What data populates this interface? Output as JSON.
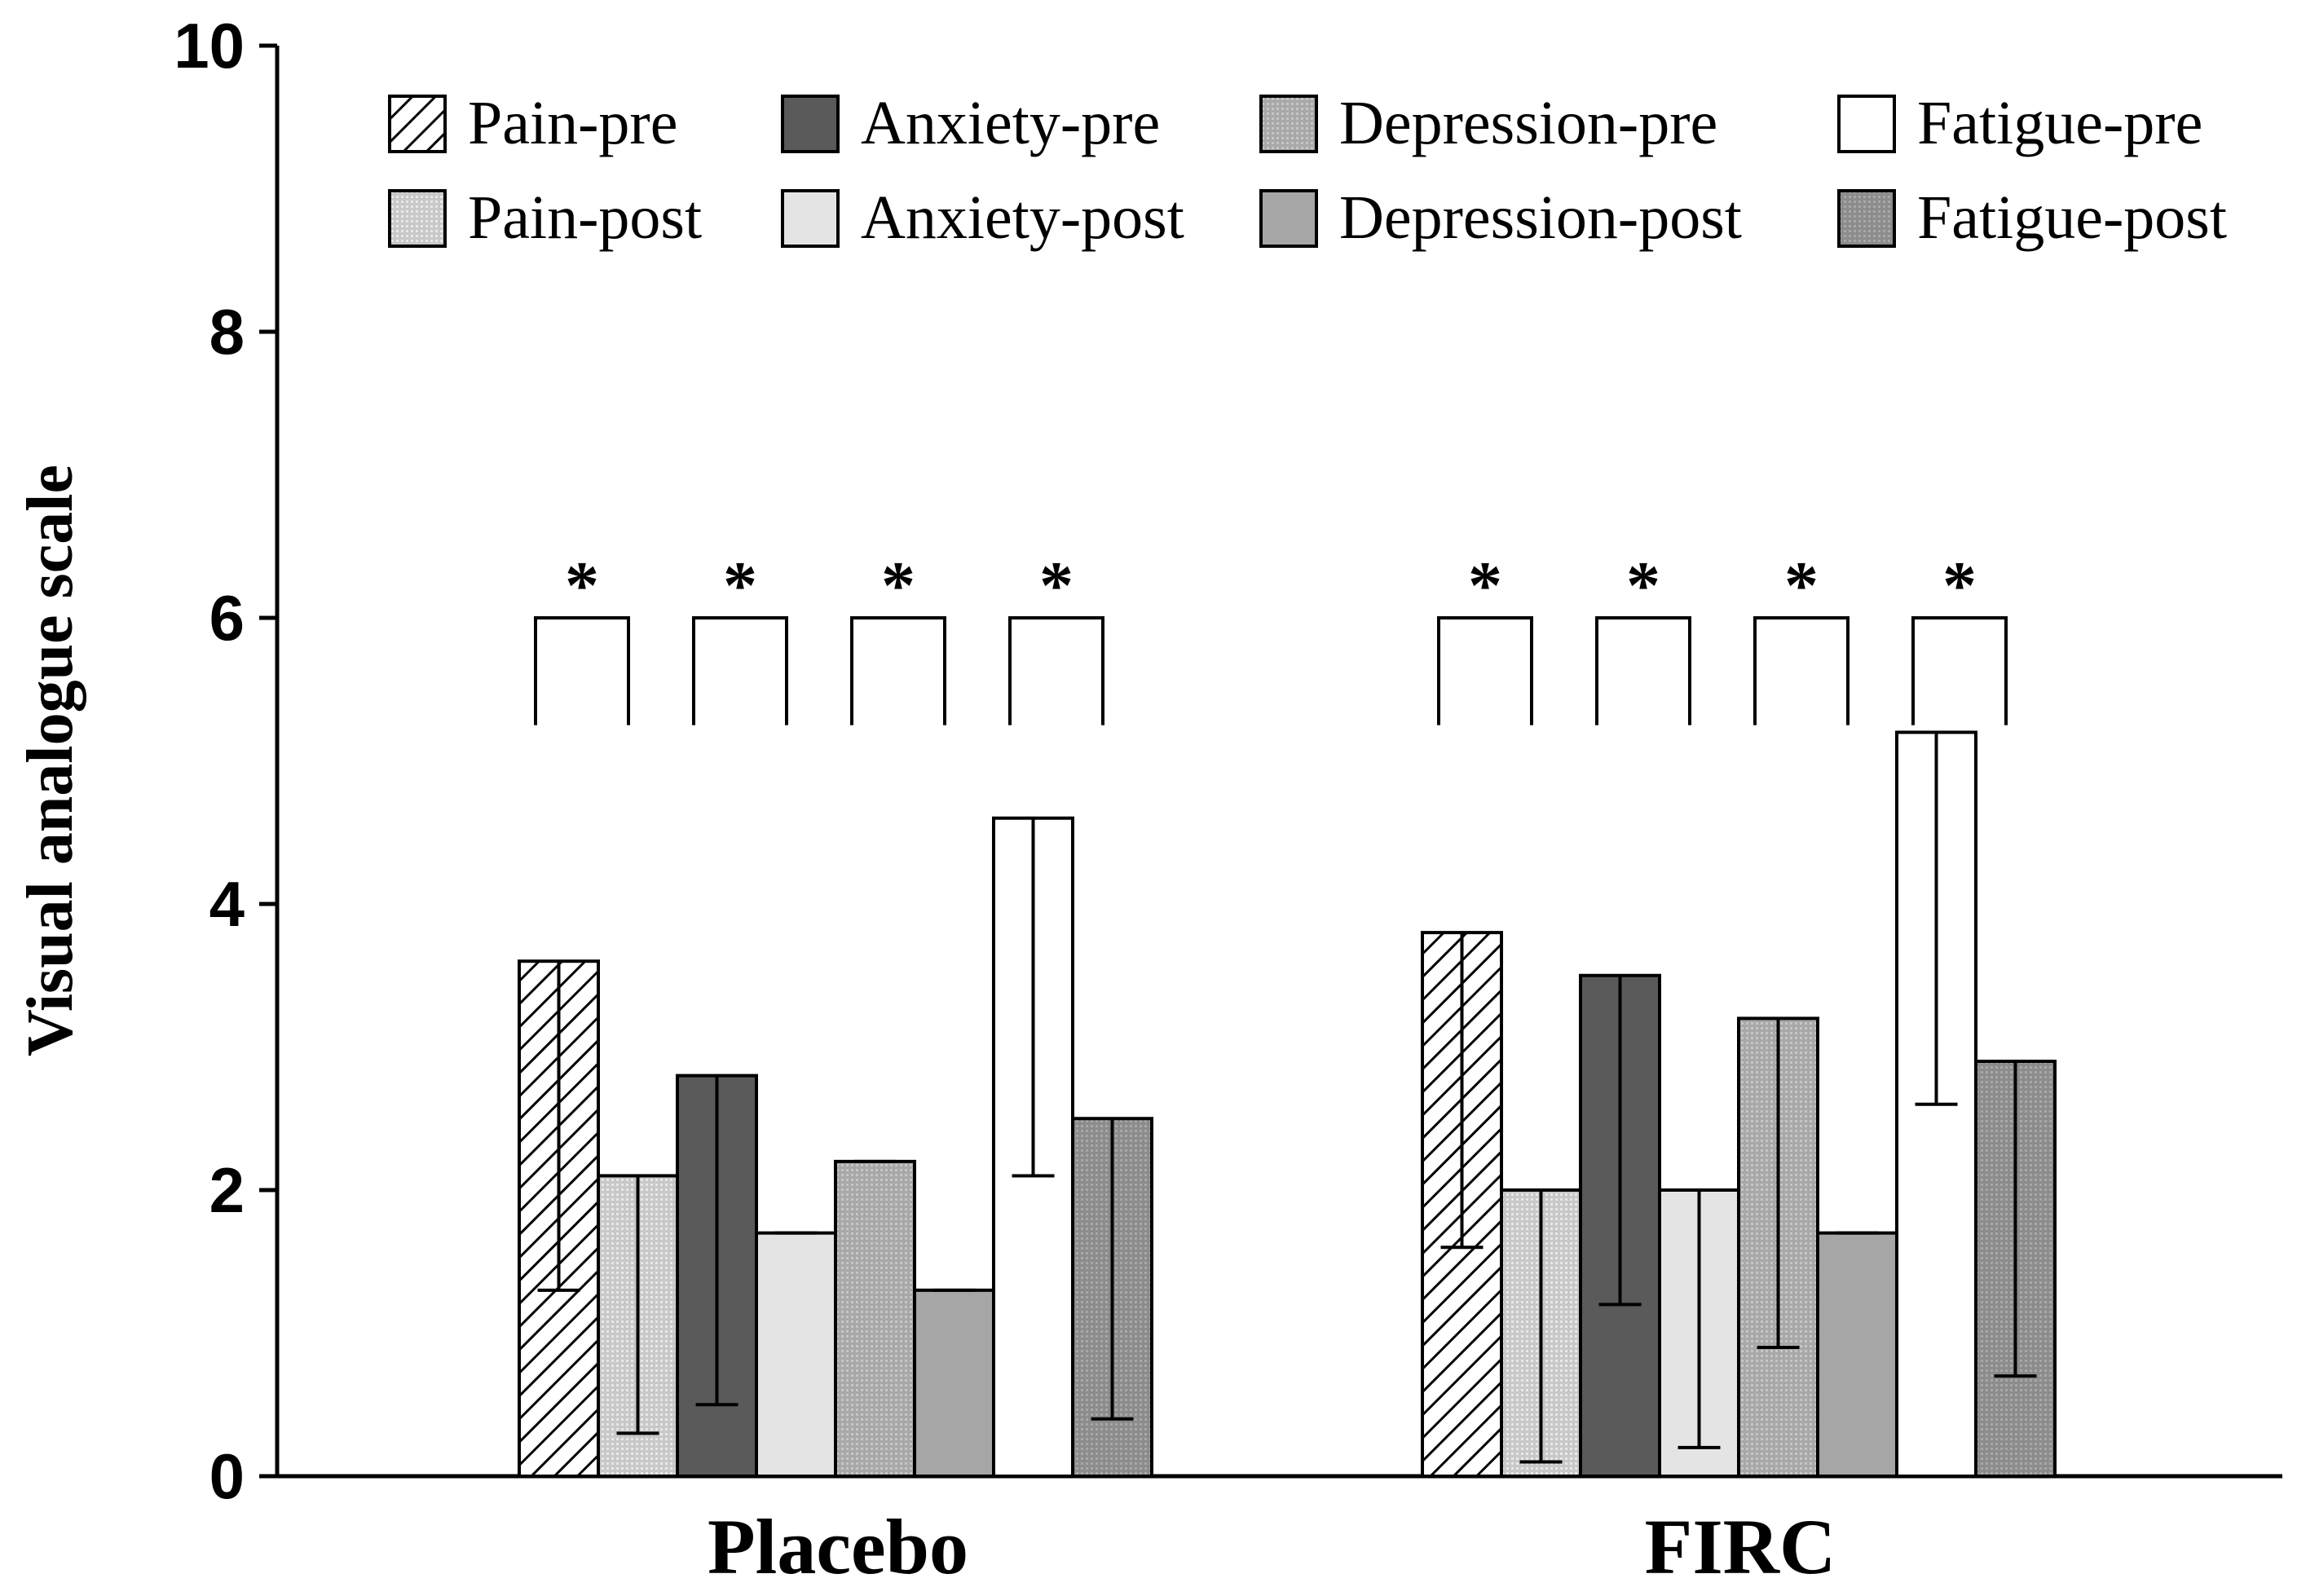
{
  "chart_data": {
    "type": "bar",
    "title": "",
    "xlabel": "",
    "ylabel": "Visual analogue scale",
    "ylim": [
      0,
      10
    ],
    "yticks": [
      "0",
      "2",
      "4",
      "6",
      "8",
      "10"
    ],
    "categories": [
      "Placebo",
      "FIRC"
    ],
    "series": [
      {
        "name": "Pain-pre",
        "values": [
          3.6,
          3.8
        ],
        "err_low": [
          1.3,
          1.6
        ],
        "fill": "hatch"
      },
      {
        "name": "Pain-post",
        "values": [
          2.1,
          2.0
        ],
        "err_low": [
          0.3,
          0.1
        ],
        "fill": "dots-light"
      },
      {
        "name": "Anxiety-pre",
        "values": [
          2.8,
          3.5
        ],
        "err_low": [
          0.5,
          1.2
        ],
        "fill": "dark"
      },
      {
        "name": "Anxiety-post",
        "values": [
          1.7,
          2.0
        ],
        "err_low": [
          1.7,
          0.2
        ],
        "fill": "very-light"
      },
      {
        "name": "Depression-pre",
        "values": [
          2.2,
          3.2
        ],
        "err_low": [
          2.2,
          0.9
        ],
        "fill": "dots-mid"
      },
      {
        "name": "Depression-post",
        "values": [
          1.3,
          1.7
        ],
        "err_low": [
          1.3,
          1.7
        ],
        "fill": "mid"
      },
      {
        "name": "Fatigue-pre",
        "values": [
          4.6,
          5.2
        ],
        "err_low": [
          2.1,
          2.6
        ],
        "fill": "white"
      },
      {
        "name": "Fatigue-post",
        "values": [
          2.5,
          2.9
        ],
        "err_low": [
          0.4,
          0.7
        ],
        "fill": "dots-dark"
      }
    ],
    "legend_order": [
      "Pain-pre",
      "Anxiety-pre",
      "Depression-pre",
      "Fatigue-pre",
      "Pain-post",
      "Anxiety-post",
      "Depression-post",
      "Fatigue-post"
    ],
    "legend_position": "top",
    "significance": {
      "marker": "*",
      "pairs": [
        [
          "Pain-pre",
          "Pain-post"
        ],
        [
          "Anxiety-pre",
          "Anxiety-post"
        ],
        [
          "Depression-pre",
          "Depression-post"
        ],
        [
          "Fatigue-pre",
          "Fatigue-post"
        ]
      ]
    },
    "colors": {
      "dark": "#5a5a5a",
      "mid": "#a6a6a6",
      "very_light": "#e4e4e4",
      "white": "#ffffff"
    }
  }
}
